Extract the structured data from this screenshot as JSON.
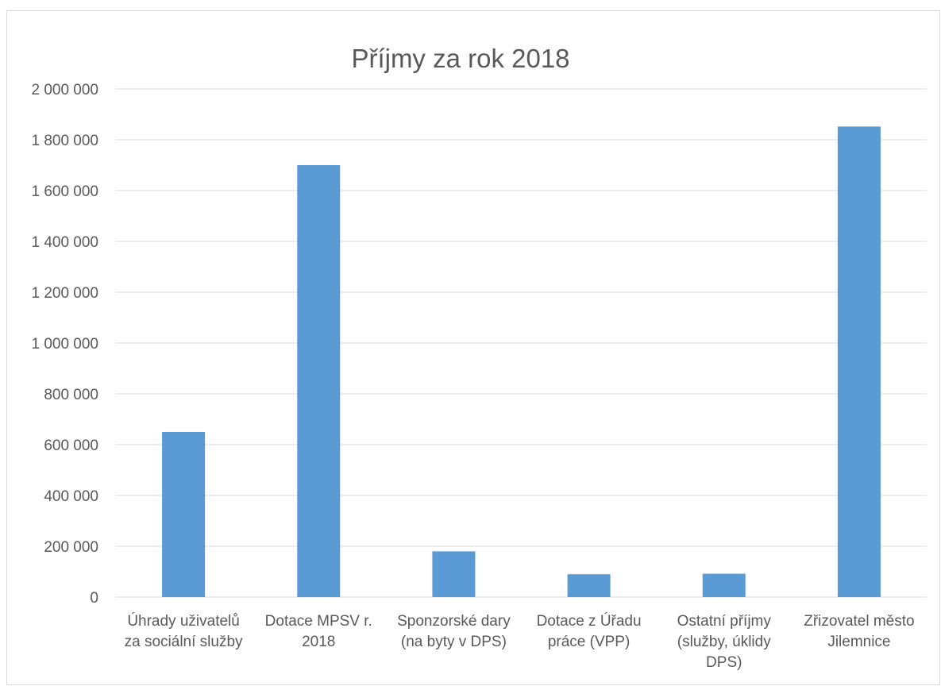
{
  "chart_data": {
    "type": "bar",
    "title": "Příjmy za rok 2018",
    "categories": [
      [
        "Úhrady uživatelů",
        "za sociální služby"
      ],
      [
        "Dotace MPSV r.",
        "2018"
      ],
      [
        "Sponzorské dary",
        "(na byty v DPS)"
      ],
      [
        "Dotace z Úřadu",
        "práce (VPP)"
      ],
      [
        "Ostatní příjmy",
        "(služby, úklidy",
        "DPS)"
      ],
      [
        "Zřizovatel město",
        "Jilemnice"
      ]
    ],
    "values": [
      650000,
      1700000,
      180000,
      90000,
      92000,
      1852000
    ],
    "ylim": [
      0,
      2000000
    ],
    "yticks": [
      "0",
      "200 000",
      "400 000",
      "600 000",
      "800 000",
      "1 000 000",
      "1 200 000",
      "1 400 000",
      "1 600 000",
      "1 800 000",
      "2 000 000"
    ],
    "ytick_values": [
      0,
      200000,
      400000,
      600000,
      800000,
      1000000,
      1200000,
      1400000,
      1600000,
      1800000,
      2000000
    ],
    "xlabel": "",
    "ylabel": "",
    "grid": true,
    "bar_color": "#5b9bd5"
  }
}
